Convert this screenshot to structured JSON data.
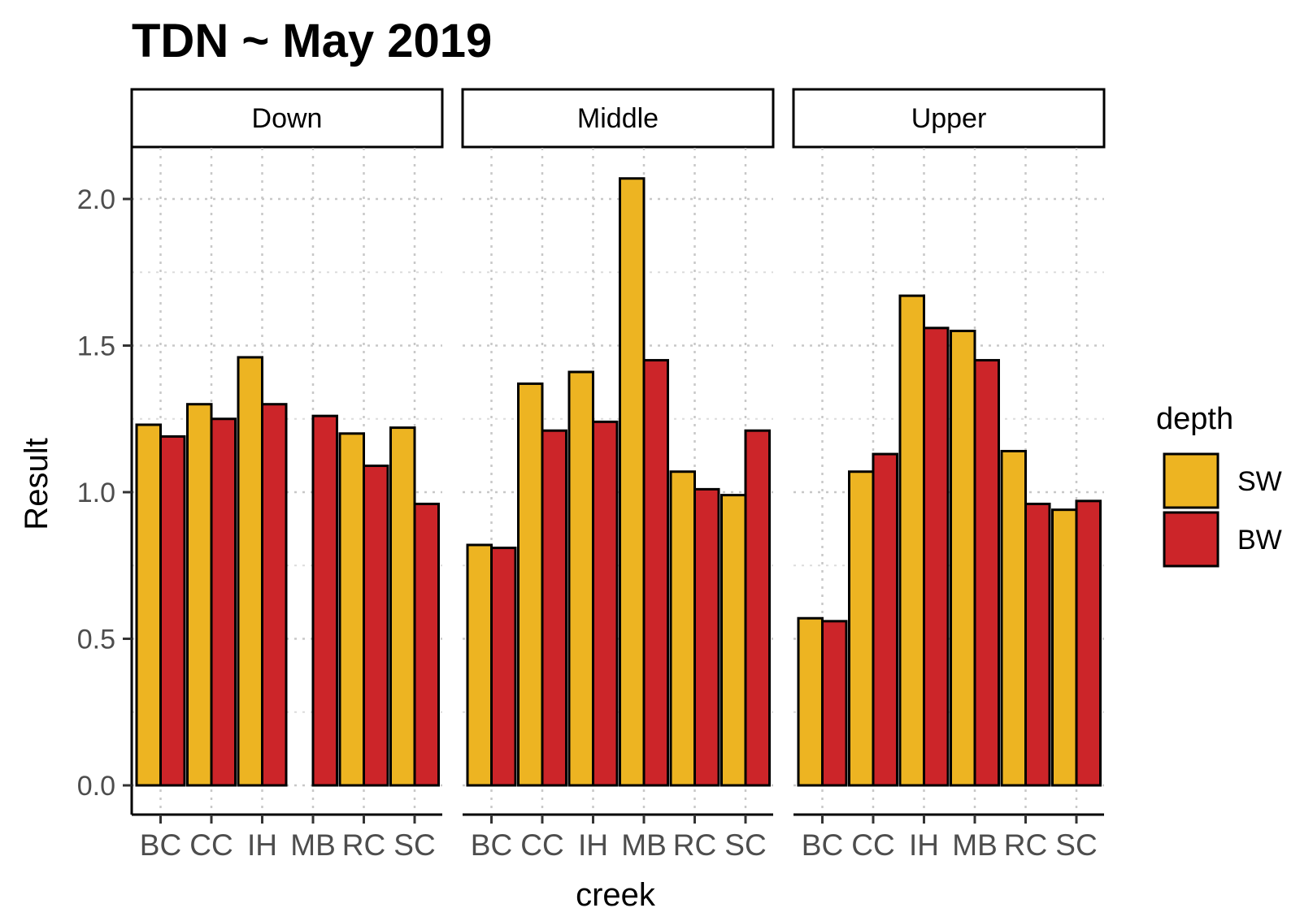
{
  "chart_data": {
    "type": "bar",
    "title": "TDN ~ May 2019",
    "xlabel": "creek",
    "ylabel": "Result",
    "ylim": [
      0,
      2.15
    ],
    "y_ticks": [
      "0.0",
      "0.5",
      "1.0",
      "1.5",
      "2.0"
    ],
    "y_tick_values": [
      0,
      0.5,
      1.0,
      1.5,
      2.0
    ],
    "grid": true,
    "legend": {
      "title": "depth",
      "placement": "right",
      "entries": [
        {
          "name": "SW",
          "color": "#EDB422"
        },
        {
          "name": "BW",
          "color": "#CC2529"
        }
      ]
    },
    "categories": [
      "BC",
      "CC",
      "IH",
      "MB",
      "RC",
      "SC"
    ],
    "panels": [
      {
        "name": "Down",
        "series": [
          {
            "name": "SW",
            "values": [
              1.23,
              1.3,
              1.46,
              null,
              1.2,
              1.22
            ]
          },
          {
            "name": "BW",
            "values": [
              1.19,
              1.25,
              1.3,
              1.26,
              1.09,
              0.96
            ]
          }
        ]
      },
      {
        "name": "Middle",
        "series": [
          {
            "name": "SW",
            "values": [
              0.82,
              1.37,
              1.41,
              2.07,
              1.07,
              0.99
            ]
          },
          {
            "name": "BW",
            "values": [
              0.81,
              1.21,
              1.24,
              1.45,
              1.01,
              1.21
            ]
          }
        ]
      },
      {
        "name": "Upper",
        "series": [
          {
            "name": "SW",
            "values": [
              0.57,
              1.07,
              1.67,
              1.55,
              1.14,
              0.94
            ]
          },
          {
            "name": "BW",
            "values": [
              0.56,
              1.13,
              1.56,
              1.45,
              0.96,
              0.97
            ]
          }
        ]
      }
    ]
  }
}
